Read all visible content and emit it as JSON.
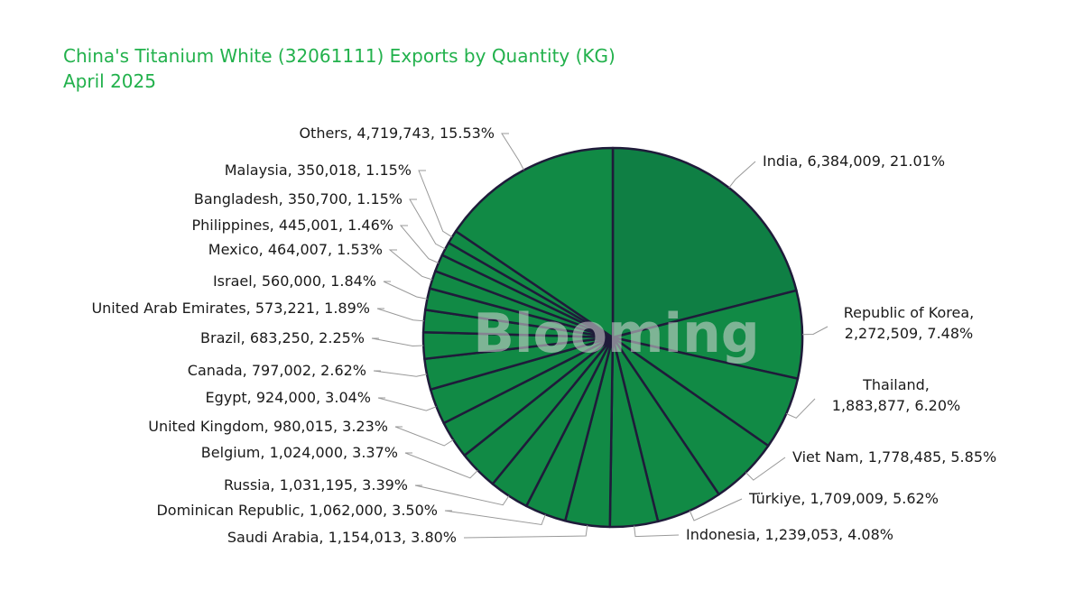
{
  "title": "China's Titanium White (32061111) Exports by Quantity (KG)",
  "subtitle": "April 2025",
  "watermark": "Blooming",
  "colors": {
    "title": "#22b14c",
    "slice": "#118a45",
    "slice_highlight": "#0f7f44",
    "border": "#1f1b3a",
    "leader": "#999999"
  },
  "chart_data": {
    "type": "pie",
    "title": "China's Titanium White (32061111) Exports by Quantity (KG)",
    "subtitle": "April 2025",
    "slices": [
      {
        "name": "India",
        "value": 6384009,
        "percent": "21.01%",
        "label": "India, 6,384,009, 21.01%"
      },
      {
        "name": "Republic of Korea",
        "value": 2272509,
        "percent": "7.48%",
        "label": "Republic of Korea,|2,272,509, 7.48%"
      },
      {
        "name": "Thailand",
        "value": 1883877,
        "percent": "6.20%",
        "label": "Thailand,|1,883,877, 6.20%"
      },
      {
        "name": "Viet Nam",
        "value": 1778485,
        "percent": "5.85%",
        "label": "Viet Nam, 1,778,485, 5.85%"
      },
      {
        "name": "Türkiye",
        "value": 1709009,
        "percent": "5.62%",
        "label": "Türkiye, 1,709,009, 5.62%"
      },
      {
        "name": "Indonesia",
        "value": 1239053,
        "percent": "4.08%",
        "label": "Indonesia, 1,239,053, 4.08%"
      },
      {
        "name": "Saudi Arabia",
        "value": 1154013,
        "percent": "3.80%",
        "label": "Saudi Arabia, 1,154,013, 3.80%"
      },
      {
        "name": "Dominican Republic",
        "value": 1062000,
        "percent": "3.50%",
        "label": "Dominican Republic, 1,062,000, 3.50%"
      },
      {
        "name": "Russia",
        "value": 1031195,
        "percent": "3.39%",
        "label": "Russia, 1,031,195, 3.39%"
      },
      {
        "name": "Belgium",
        "value": 1024000,
        "percent": "3.37%",
        "label": "Belgium, 1,024,000, 3.37%"
      },
      {
        "name": "United Kingdom",
        "value": 980015,
        "percent": "3.23%",
        "label": "United Kingdom, 980,015, 3.23%"
      },
      {
        "name": "Egypt",
        "value": 924000,
        "percent": "3.04%",
        "label": "Egypt, 924,000, 3.04%"
      },
      {
        "name": "Canada",
        "value": 797002,
        "percent": "2.62%",
        "label": "Canada, 797,002, 2.62%"
      },
      {
        "name": "Brazil",
        "value": 683250,
        "percent": "2.25%",
        "label": "Brazil, 683,250, 2.25%"
      },
      {
        "name": "United Arab Emirates",
        "value": 573221,
        "percent": "1.89%",
        "label": "United Arab Emirates, 573,221, 1.89%"
      },
      {
        "name": "Israel",
        "value": 560000,
        "percent": "1.84%",
        "label": "Israel, 560,000, 1.84%"
      },
      {
        "name": "Mexico",
        "value": 464007,
        "percent": "1.53%",
        "label": "Mexico, 464,007, 1.53%"
      },
      {
        "name": "Philippines",
        "value": 445001,
        "percent": "1.46%",
        "label": "Philippines, 445,001, 1.46%"
      },
      {
        "name": "Bangladesh",
        "value": 350700,
        "percent": "1.15%",
        "label": "Bangladesh, 350,700, 1.15%"
      },
      {
        "name": "Malaysia",
        "value": 350018,
        "percent": "1.15%",
        "label": "Malaysia, 350,018, 1.15%"
      },
      {
        "name": "Others",
        "value": 4719743,
        "percent": "15.53%",
        "label": "Others, 4,719,743, 15.53%"
      }
    ]
  }
}
